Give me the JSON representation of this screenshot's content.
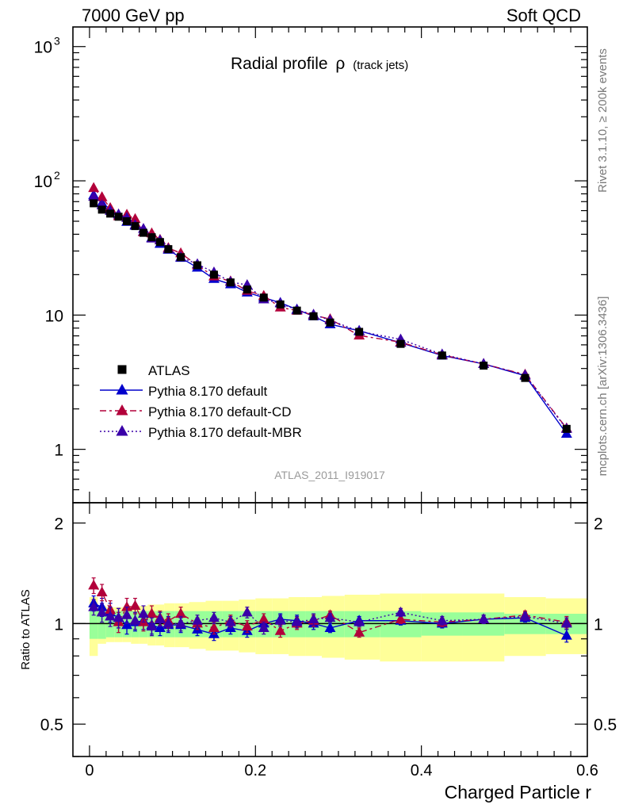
{
  "header": {
    "left": "7000 GeV pp",
    "right": "Soft QCD"
  },
  "side_labels": {
    "rivet": "Rivet 3.1.10, ≥ 200k events",
    "mcplots": "mcplots.cern.ch [arXiv:1306.3436]"
  },
  "chart_data": {
    "type": "line",
    "title": "Radial profile ρ (track jets)",
    "title_main": "Radial profile",
    "title_symbol": "ρ",
    "title_sub": "(track jets)",
    "watermark": "ATLAS_2011_I919017",
    "xlabel": "Charged Particle r",
    "ylabel_ratio": "Ratio to ATLAS",
    "xlim": [
      -0.02,
      0.6
    ],
    "ylim_main": [
      0.4,
      1400
    ],
    "ylim_ratio": [
      0.4,
      2.3
    ],
    "yscale": "log",
    "x_ticks": [
      "0",
      "0.2",
      "0.4",
      "0.6"
    ],
    "x_tick_values": [
      0,
      0.2,
      0.4,
      0.6
    ],
    "y_ticks_main": [
      {
        "value": 1,
        "base": "1",
        "exp": ""
      },
      {
        "value": 10,
        "base": "10",
        "exp": ""
      },
      {
        "value": 100,
        "base": "10",
        "exp": "2"
      },
      {
        "value": 1000,
        "base": "10",
        "exp": "3"
      }
    ],
    "y_ticks_ratio": [
      {
        "value": 0.5,
        "label": "0.5"
      },
      {
        "value": 1,
        "label": "1"
      },
      {
        "value": 2,
        "label": "2"
      }
    ],
    "x": [
      0.005,
      0.015,
      0.025,
      0.035,
      0.045,
      0.055,
      0.065,
      0.075,
      0.085,
      0.095,
      0.11,
      0.13,
      0.15,
      0.17,
      0.19,
      0.21,
      0.23,
      0.25,
      0.27,
      0.29,
      0.325,
      0.375,
      0.425,
      0.475,
      0.525,
      0.575
    ],
    "data": {
      "name": "ATLAS",
      "values": [
        68,
        61,
        57,
        54,
        50,
        46,
        41,
        38,
        35,
        31,
        27,
        23.5,
        20,
        17.5,
        15.5,
        13.5,
        12,
        10.8,
        9.8,
        8.8,
        7.5,
        6.1,
        5.0,
        4.2,
        3.4,
        1.42
      ],
      "stat_band": [
        0.1,
        0.1,
        0.09,
        0.09,
        0.09,
        0.09,
        0.09,
        0.09,
        0.09,
        0.09,
        0.09,
        0.09,
        0.09,
        0.09,
        0.09,
        0.09,
        0.09,
        0.09,
        0.09,
        0.09,
        0.09,
        0.09,
        0.08,
        0.08,
        0.07,
        0.07
      ],
      "total_band": [
        0.2,
        0.13,
        0.12,
        0.12,
        0.12,
        0.13,
        0.13,
        0.14,
        0.14,
        0.15,
        0.15,
        0.16,
        0.17,
        0.17,
        0.18,
        0.19,
        0.19,
        0.2,
        0.2,
        0.21,
        0.22,
        0.23,
        0.23,
        0.23,
        0.2,
        0.19
      ],
      "color": "#000000"
    },
    "series": [
      {
        "name": "Pythia 8.170 default",
        "color": "#0000cc",
        "dash": "",
        "ratio": [
          1.15,
          1.12,
          1.08,
          1.04,
          0.99,
          1.01,
          1.02,
          0.99,
          0.97,
          0.99,
          0.99,
          0.96,
          0.93,
          0.97,
          0.95,
          1.0,
          1.03,
          1.02,
          1.0,
          0.97,
          1.02,
          1.02,
          1.0,
          1.03,
          1.04,
          0.92
        ],
        "err": [
          0.06,
          0.07,
          0.07,
          0.07,
          0.06,
          0.06,
          0.06,
          0.06,
          0.05,
          0.05,
          0.05,
          0.04,
          0.04,
          0.04,
          0.04,
          0.04,
          0.04,
          0.04,
          0.04,
          0.03,
          0.03,
          0.03,
          0.03,
          0.03,
          0.03,
          0.04
        ]
      },
      {
        "name": "Pythia 8.170 default-CD",
        "color": "#b2003a",
        "dash": "8,4,3,4",
        "ratio": [
          1.3,
          1.24,
          1.1,
          1.01,
          1.12,
          1.13,
          1.01,
          1.07,
          1.04,
          1.02,
          1.07,
          1.0,
          0.97,
          1.02,
          0.98,
          1.03,
          0.95,
          1.0,
          1.02,
          1.06,
          0.94,
          1.03,
          1.01,
          1.03,
          1.06,
          1.01
        ],
        "err": [
          0.07,
          0.07,
          0.07,
          0.07,
          0.07,
          0.06,
          0.06,
          0.06,
          0.05,
          0.05,
          0.05,
          0.04,
          0.04,
          0.04,
          0.04,
          0.04,
          0.04,
          0.04,
          0.04,
          0.03,
          0.03,
          0.03,
          0.03,
          0.03,
          0.03,
          0.04
        ]
      },
      {
        "name": "Pythia 8.170 default-MBR",
        "color": "#3a00a8",
        "dash": "2,3",
        "ratio": [
          1.12,
          1.08,
          1.05,
          1.04,
          1.06,
          1.02,
          1.07,
          0.98,
          1.03,
          1.0,
          1.0,
          1.02,
          1.04,
          1.01,
          1.08,
          0.97,
          1.02,
          1.01,
          1.03,
          1.04,
          1.01,
          1.08,
          1.02,
          1.03,
          1.05,
          1.0
        ],
        "err": [
          0.06,
          0.07,
          0.07,
          0.07,
          0.06,
          0.06,
          0.06,
          0.06,
          0.05,
          0.05,
          0.05,
          0.04,
          0.04,
          0.04,
          0.04,
          0.04,
          0.04,
          0.04,
          0.04,
          0.03,
          0.03,
          0.03,
          0.03,
          0.03,
          0.03,
          0.04
        ]
      }
    ],
    "colors": {
      "band_stat": "#99ff99",
      "band_total": "#ffff99"
    }
  }
}
